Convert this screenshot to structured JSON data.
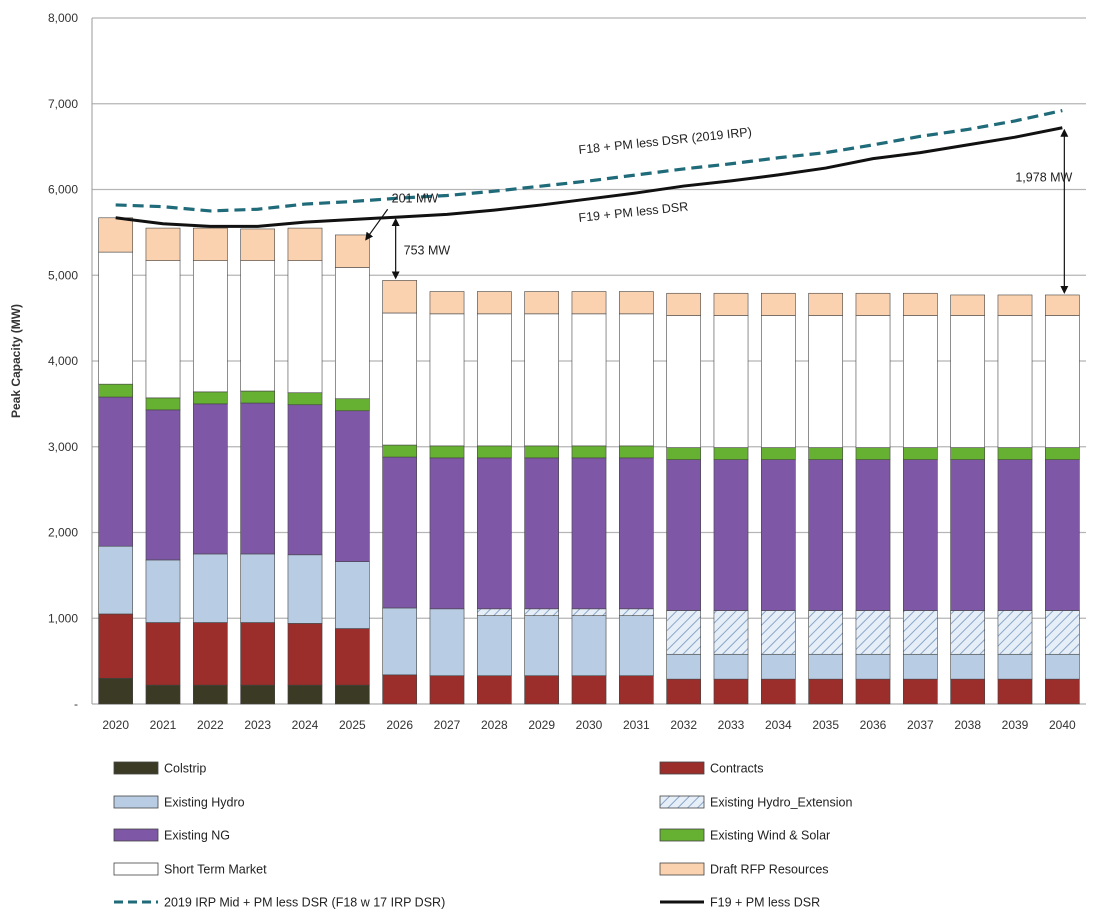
{
  "chart_data": {
    "type": "bar",
    "stacked": true,
    "ylabel": "Peak Capacity (MW)",
    "ylim": [
      0,
      8000
    ],
    "yticks": [
      "-",
      "1,000",
      "2,000",
      "3,000",
      "4,000",
      "5,000",
      "6,000",
      "7,000",
      "8,000"
    ],
    "grid": true,
    "legend_position": "bottom",
    "categories": [
      "2020",
      "2021",
      "2022",
      "2023",
      "2024",
      "2025",
      "2026",
      "2027",
      "2028",
      "2029",
      "2030",
      "2031",
      "2032",
      "2033",
      "2034",
      "2035",
      "2036",
      "2037",
      "2038",
      "2039",
      "2040"
    ],
    "series": [
      {
        "name": "Colstrip",
        "color": "#3b3a24",
        "values": [
          300,
          220,
          220,
          220,
          220,
          220,
          0,
          0,
          0,
          0,
          0,
          0,
          0,
          0,
          0,
          0,
          0,
          0,
          0,
          0,
          0
        ]
      },
      {
        "name": "Contracts",
        "color": "#9b2d2a",
        "values": [
          750,
          730,
          730,
          730,
          720,
          660,
          340,
          330,
          330,
          330,
          330,
          330,
          290,
          290,
          290,
          290,
          290,
          290,
          290,
          290,
          290
        ]
      },
      {
        "name": "Existing Hydro",
        "color": "#b8cce4",
        "values": [
          790,
          730,
          800,
          800,
          800,
          780,
          780,
          780,
          700,
          700,
          700,
          700,
          290,
          290,
          290,
          290,
          290,
          290,
          290,
          290,
          290
        ]
      },
      {
        "name": "Existing Hydro_Extension",
        "color": "#dce6f2",
        "pattern": "hatch",
        "values": [
          0,
          0,
          0,
          0,
          0,
          0,
          0,
          0,
          80,
          80,
          80,
          80,
          510,
          510,
          510,
          510,
          510,
          510,
          510,
          510,
          510
        ]
      },
      {
        "name": "Existing NG",
        "color": "#7e57a6",
        "values": [
          1740,
          1750,
          1750,
          1760,
          1750,
          1760,
          1760,
          1760,
          1760,
          1760,
          1760,
          1760,
          1760,
          1760,
          1760,
          1760,
          1760,
          1760,
          1760,
          1760,
          1760
        ]
      },
      {
        "name": "Existing Wind & Solar",
        "color": "#66b032",
        "values": [
          150,
          140,
          140,
          140,
          140,
          140,
          140,
          140,
          140,
          140,
          140,
          140,
          140,
          140,
          140,
          140,
          140,
          140,
          140,
          140,
          140
        ]
      },
      {
        "name": "Short Term Market",
        "color": "#ffffff",
        "values": [
          1540,
          1600,
          1530,
          1520,
          1540,
          1530,
          1540,
          1540,
          1540,
          1540,
          1540,
          1540,
          1540,
          1540,
          1540,
          1540,
          1540,
          1540,
          1540,
          1540,
          1540
        ]
      },
      {
        "name": "Draft RFP Resources",
        "color": "#fbd2b0",
        "values": [
          400,
          380,
          380,
          370,
          380,
          380,
          380,
          260,
          260,
          260,
          260,
          260,
          260,
          260,
          260,
          260,
          260,
          260,
          240,
          240,
          240
        ]
      }
    ],
    "lines": [
      {
        "name": "2019 IRP Mid + PM less DSR (F18 w 17 IRP DSR)",
        "color": "#1f6b7a",
        "dashed": true,
        "values": [
          5820,
          5800,
          5750,
          5770,
          5830,
          5860,
          5900,
          5930,
          5980,
          6040,
          6100,
          6170,
          6240,
          6300,
          6370,
          6430,
          6520,
          6620,
          6700,
          6800,
          6920
        ]
      },
      {
        "name": "F19 + PM less DSR",
        "color": "#111111",
        "dashed": false,
        "values": [
          5670,
          5600,
          5570,
          5570,
          5620,
          5650,
          5680,
          5710,
          5760,
          5820,
          5890,
          5960,
          6040,
          6100,
          6170,
          6250,
          6360,
          6430,
          6520,
          6610,
          6720
        ]
      }
    ],
    "annotations": {
      "dashed_label": "F18 + PM less DSR (2019 IRP)",
      "solid_label": "F19 + PM less DSR",
      "gap_2025": "201 MW",
      "gap_2026": "753 MW",
      "gap_2040": "1,978 MW"
    }
  }
}
